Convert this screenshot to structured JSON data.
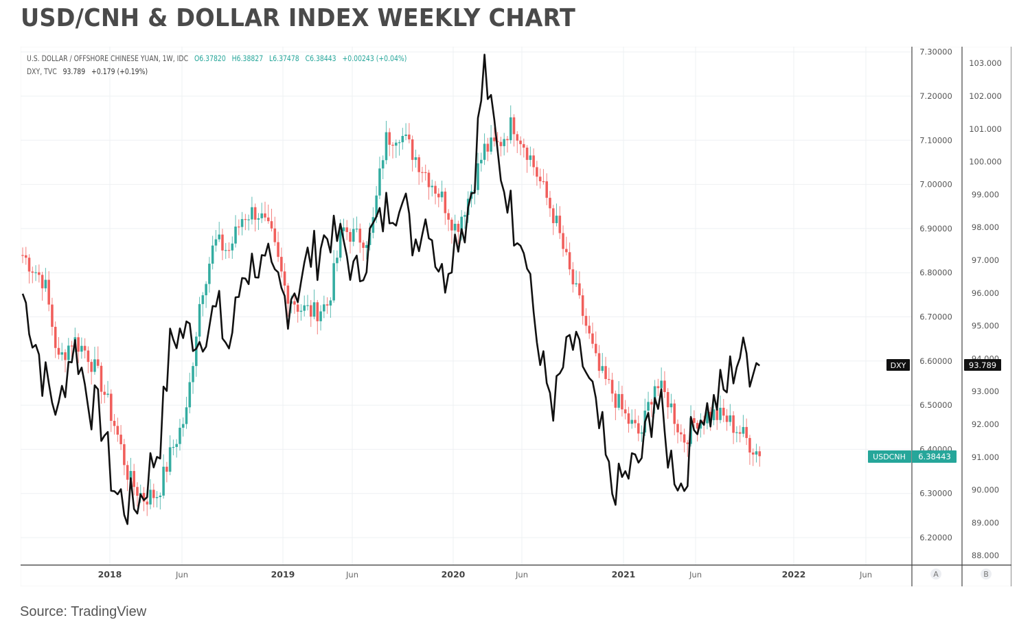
{
  "header": {
    "title": "USD/CNH & DOLLAR INDEX WEEKLY CHART"
  },
  "legend": {
    "line1": {
      "symbol": "U.S. DOLLAR / OFFSHORE CHINESE YUAN, 1W, IDC",
      "open": "O6.37820",
      "high": "H6.38827",
      "low": "L6.37478",
      "close": "C6.38443",
      "change": "+0.00243 (+0.04%)"
    },
    "line2": {
      "symbol": "DXY, TVC",
      "value": "93.789",
      "change": "+0.179 (+0.19%)"
    }
  },
  "badges": {
    "dxy_label": "DXY",
    "dxy_value": "93.789",
    "usdcnh_label": "USDCNH",
    "usdcnh_value": "6.38443"
  },
  "scale_buttons": {
    "a": "A",
    "b": "B"
  },
  "footer": {
    "source": "Source: TradingView"
  },
  "colors": {
    "up": "#26a69a",
    "down": "#ef5350",
    "dxy_line": "#111111",
    "grid": "#eef0f3",
    "axis_text": "#555555"
  },
  "chart_data": {
    "type": "line",
    "title": "USD/CNH & DOLLAR INDEX WEEKLY CHART",
    "interval": "1W",
    "x_ticks": [
      "2018",
      "Jun",
      "2019",
      "Jun",
      "2020",
      "Jun",
      "2021",
      "Jun",
      "2022",
      "Jun"
    ],
    "left_axis": {
      "label": "USDCNH",
      "ticks": [
        "7.30000",
        "7.20000",
        "7.10000",
        "7.00000",
        "6.90000",
        "6.80000",
        "6.70000",
        "6.60000",
        "6.50000",
        "6.40000",
        "6.30000",
        "6.20000"
      ],
      "range": [
        6.15,
        7.31
      ]
    },
    "right_axis": {
      "label": "DXY",
      "ticks": [
        "103.000",
        "102.000",
        "101.000",
        "100.000",
        "99.000",
        "98.000",
        "97.000",
        "96.000",
        "95.000",
        "94.000",
        "93.000",
        "92.000",
        "91.000",
        "90.000",
        "89.000",
        "88.000"
      ],
      "range": [
        87.5,
        103.4
      ]
    },
    "series": [
      {
        "name": "USDCNH (candles, close approx.)",
        "axis": "left",
        "points": [
          [
            "2017-07",
            6.84
          ],
          [
            "2017-08",
            6.78
          ],
          [
            "2017-09",
            6.6
          ],
          [
            "2017-10",
            6.65
          ],
          [
            "2017-11",
            6.62
          ],
          [
            "2017-12",
            6.55
          ],
          [
            "2018-01",
            6.45
          ],
          [
            "2018-02",
            6.33
          ],
          [
            "2018-03",
            6.29
          ],
          [
            "2018-04",
            6.3
          ],
          [
            "2018-05",
            6.4
          ],
          [
            "2018-06",
            6.48
          ],
          [
            "2018-07",
            6.75
          ],
          [
            "2018-08",
            6.87
          ],
          [
            "2018-09",
            6.85
          ],
          [
            "2018-10",
            6.93
          ],
          [
            "2018-11",
            6.94
          ],
          [
            "2018-12",
            6.88
          ],
          [
            "2019-01",
            6.76
          ],
          [
            "2019-02",
            6.72
          ],
          [
            "2019-03",
            6.71
          ],
          [
            "2019-04",
            6.73
          ],
          [
            "2019-05",
            6.9
          ],
          [
            "2019-06",
            6.88
          ],
          [
            "2019-07",
            6.88
          ],
          [
            "2019-08",
            7.1
          ],
          [
            "2019-09",
            7.12
          ],
          [
            "2019-10",
            7.07
          ],
          [
            "2019-11",
            7.02
          ],
          [
            "2019-12",
            6.97
          ],
          [
            "2020-01",
            6.9
          ],
          [
            "2020-02",
            6.98
          ],
          [
            "2020-03",
            7.08
          ],
          [
            "2020-04",
            7.09
          ],
          [
            "2020-05",
            7.14
          ],
          [
            "2020-06",
            7.08
          ],
          [
            "2020-07",
            7.0
          ],
          [
            "2020-08",
            6.92
          ],
          [
            "2020-09",
            6.8
          ],
          [
            "2020-10",
            6.7
          ],
          [
            "2020-11",
            6.58
          ],
          [
            "2020-12",
            6.53
          ],
          [
            "2021-01",
            6.47
          ],
          [
            "2021-02",
            6.43
          ],
          [
            "2021-03",
            6.55
          ],
          [
            "2021-04",
            6.51
          ],
          [
            "2021-05",
            6.42
          ],
          [
            "2021-06",
            6.47
          ],
          [
            "2021-07",
            6.48
          ],
          [
            "2021-08",
            6.47
          ],
          [
            "2021-09",
            6.44
          ],
          [
            "2021-10",
            6.38443
          ]
        ]
      },
      {
        "name": "DXY",
        "axis": "right",
        "points": [
          [
            "2017-07",
            96.0
          ],
          [
            "2017-08",
            93.5
          ],
          [
            "2017-09",
            92.3
          ],
          [
            "2017-10",
            94.6
          ],
          [
            "2017-11",
            93.0
          ],
          [
            "2017-12",
            92.3
          ],
          [
            "2018-01",
            89.9
          ],
          [
            "2018-02",
            89.3
          ],
          [
            "2018-03",
            89.9
          ],
          [
            "2018-04",
            91.3
          ],
          [
            "2018-05",
            94.6
          ],
          [
            "2018-06",
            94.8
          ],
          [
            "2018-07",
            94.6
          ],
          [
            "2018-08",
            95.5
          ],
          [
            "2018-09",
            94.3
          ],
          [
            "2018-10",
            96.7
          ],
          [
            "2018-11",
            97.0
          ],
          [
            "2018-12",
            96.4
          ],
          [
            "2019-01",
            95.8
          ],
          [
            "2019-02",
            96.4
          ],
          [
            "2019-03",
            97.3
          ],
          [
            "2019-04",
            97.8
          ],
          [
            "2019-05",
            97.6
          ],
          [
            "2019-06",
            96.3
          ],
          [
            "2019-07",
            97.8
          ],
          [
            "2019-08",
            98.3
          ],
          [
            "2019-09",
            99.1
          ],
          [
            "2019-10",
            97.5
          ],
          [
            "2019-11",
            98.4
          ],
          [
            "2019-12",
            96.5
          ],
          [
            "2020-01",
            97.6
          ],
          [
            "2020-02",
            98.8
          ],
          [
            "2020-03",
            102.8
          ],
          [
            "2020-04",
            100.0
          ],
          [
            "2020-05",
            98.4
          ],
          [
            "2020-06",
            97.4
          ],
          [
            "2020-07",
            93.5
          ],
          [
            "2020-08",
            92.8
          ],
          [
            "2020-09",
            94.5
          ],
          [
            "2020-10",
            93.9
          ],
          [
            "2020-11",
            92.0
          ],
          [
            "2020-12",
            90.0
          ],
          [
            "2021-01",
            90.4
          ],
          [
            "2021-02",
            90.9
          ],
          [
            "2021-03",
            93.0
          ],
          [
            "2021-04",
            91.0
          ],
          [
            "2021-05",
            90.0
          ],
          [
            "2021-06",
            92.3
          ],
          [
            "2021-07",
            92.5
          ],
          [
            "2021-08",
            93.0
          ],
          [
            "2021-09",
            94.2
          ],
          [
            "2021-10",
            93.789
          ]
        ]
      }
    ],
    "last_values": {
      "USDCNH": 6.38443,
      "DXY": 93.789
    }
  }
}
